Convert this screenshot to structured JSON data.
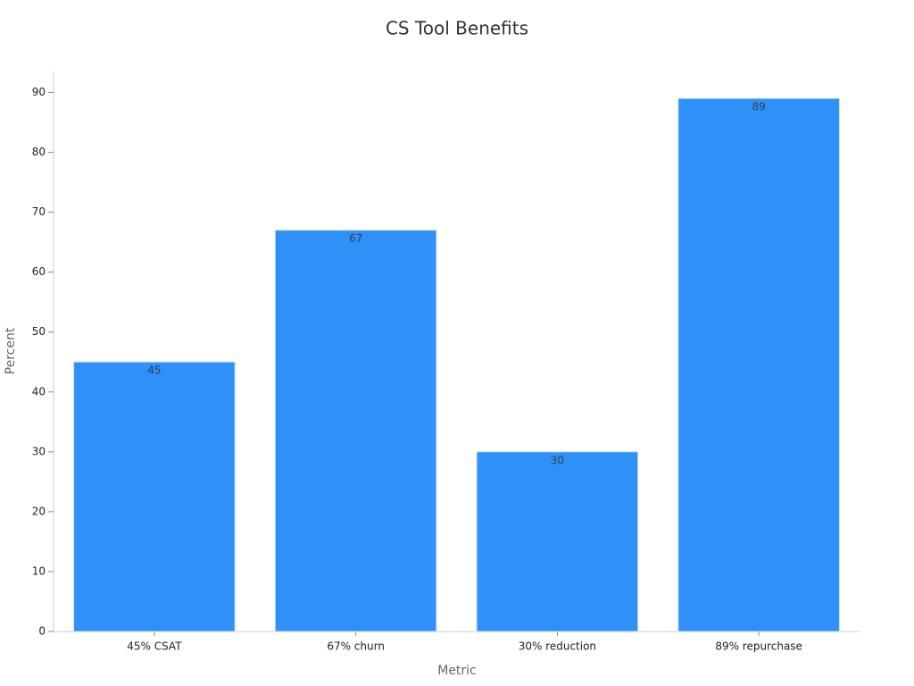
{
  "chart_data": {
    "type": "bar",
    "title": "CS Tool Benefits",
    "x_label": "Metric",
    "y_label": "Percent",
    "categories": [
      "45% CSAT",
      "67% churn",
      "30% reduction",
      "89% repurchase"
    ],
    "values": [
      45,
      67,
      30,
      89
    ],
    "color": "#2f91f7",
    "ylim": [
      0,
      93.5
    ],
    "yticks": [
      0,
      10,
      20,
      30,
      40,
      50,
      60,
      70,
      80,
      90
    ],
    "grid": false
  }
}
